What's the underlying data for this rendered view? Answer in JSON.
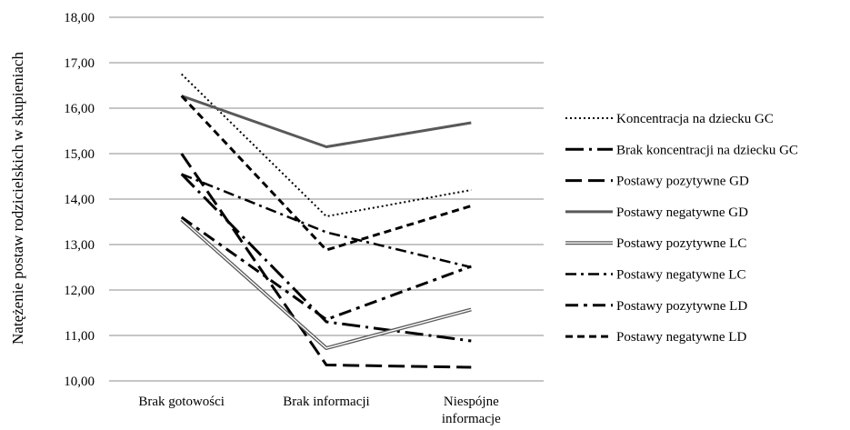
{
  "chart_data": {
    "type": "line",
    "categories": [
      "Brak gotowości",
      "Brak informacji",
      "Niespójne informacje"
    ],
    "category_labels": [
      [
        "Brak gotowości"
      ],
      [
        "Brak informacji"
      ],
      [
        "Niespójne",
        "informacje"
      ]
    ],
    "ylabel": "Natężenie postaw rodzicielskich w skupieniach",
    "ylim": [
      10,
      18
    ],
    "yticks": [
      10,
      11,
      12,
      13,
      14,
      15,
      16,
      17,
      18
    ],
    "ytick_labels": [
      "10,00",
      "11,00",
      "12,00",
      "13,00",
      "14,00",
      "15,00",
      "16,00",
      "17,00",
      "18,00"
    ],
    "grid": true,
    "legend_position": "right",
    "series": [
      {
        "name": "Koncentracja na dziecku GC",
        "values": [
          16.75,
          13.62,
          14.2
        ],
        "style": "dotted",
        "color": "#000000"
      },
      {
        "name": "Brak koncentracji na dziecku GC",
        "values": [
          14.55,
          11.3,
          10.88
        ],
        "style": "longdash-dot",
        "color": "#000000"
      },
      {
        "name": "Postawy pozytywne GD",
        "values": [
          15.0,
          10.35,
          10.3
        ],
        "style": "longdash",
        "color": "#000000"
      },
      {
        "name": "Postawy negatywne GD",
        "values": [
          16.27,
          15.15,
          15.68
        ],
        "style": "solid",
        "color": "#595959"
      },
      {
        "name": "Postawy pozytywne LC",
        "values": [
          13.55,
          10.72,
          11.57
        ],
        "style": "double",
        "color": "#595959"
      },
      {
        "name": "Postawy negatywne LC",
        "values": [
          14.55,
          13.27,
          12.5
        ],
        "style": "dashdot",
        "color": "#000000"
      },
      {
        "name": "Postawy pozytywne LD",
        "values": [
          13.6,
          11.35,
          12.52
        ],
        "style": "dashdot-heavy",
        "color": "#000000"
      },
      {
        "name": "Postawy negatywne LD",
        "values": [
          16.27,
          12.88,
          13.85
        ],
        "style": "dashed",
        "color": "#000000"
      }
    ]
  }
}
